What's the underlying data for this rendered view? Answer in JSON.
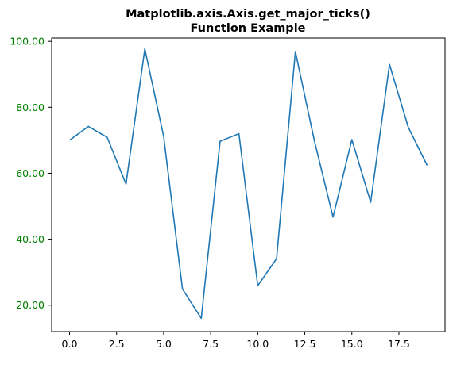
{
  "colors": {
    "line": "#1f77b4",
    "ytick_label": "#008000",
    "xtick_label": "#000000",
    "axes_frame": "#000000",
    "background": "#ffffff"
  },
  "chart_data": {
    "type": "line",
    "title": "Matplotlib.axis.Axis.get_major_ticks()\nFunction Example",
    "title_lines": [
      "Matplotlib.axis.Axis.get_major_ticks()",
      "Function Example"
    ],
    "xlabel": "",
    "ylabel": "",
    "xlim": [
      -0.95,
      19.95
    ],
    "ylim": [
      12.0,
      101.0
    ],
    "grid": false,
    "legend": "none",
    "x_ticks": [
      0.0,
      2.5,
      5.0,
      7.5,
      10.0,
      12.5,
      15.0,
      17.5
    ],
    "x_tick_labels": [
      "0.0",
      "2.5",
      "5.0",
      "7.5",
      "10.0",
      "12.5",
      "15.0",
      "17.5"
    ],
    "y_ticks": [
      20.0,
      40.0,
      60.0,
      80.0,
      100.0
    ],
    "y_tick_labels": [
      "20.00",
      "40.00",
      "60.00",
      "80.00",
      "100.00"
    ],
    "x": [
      0,
      1,
      2,
      3,
      4,
      5,
      6,
      7,
      8,
      9,
      10,
      11,
      12,
      13,
      14,
      15,
      16,
      17,
      18,
      19
    ],
    "series": [
      {
        "values": [
          70.0,
          74.2,
          70.9,
          56.7,
          97.7,
          71.2,
          24.9,
          16.0,
          69.7,
          72.0,
          25.9,
          34.1,
          96.9,
          70.1,
          46.7,
          70.2,
          51.2,
          93.0,
          73.9,
          62.4
        ]
      }
    ]
  }
}
